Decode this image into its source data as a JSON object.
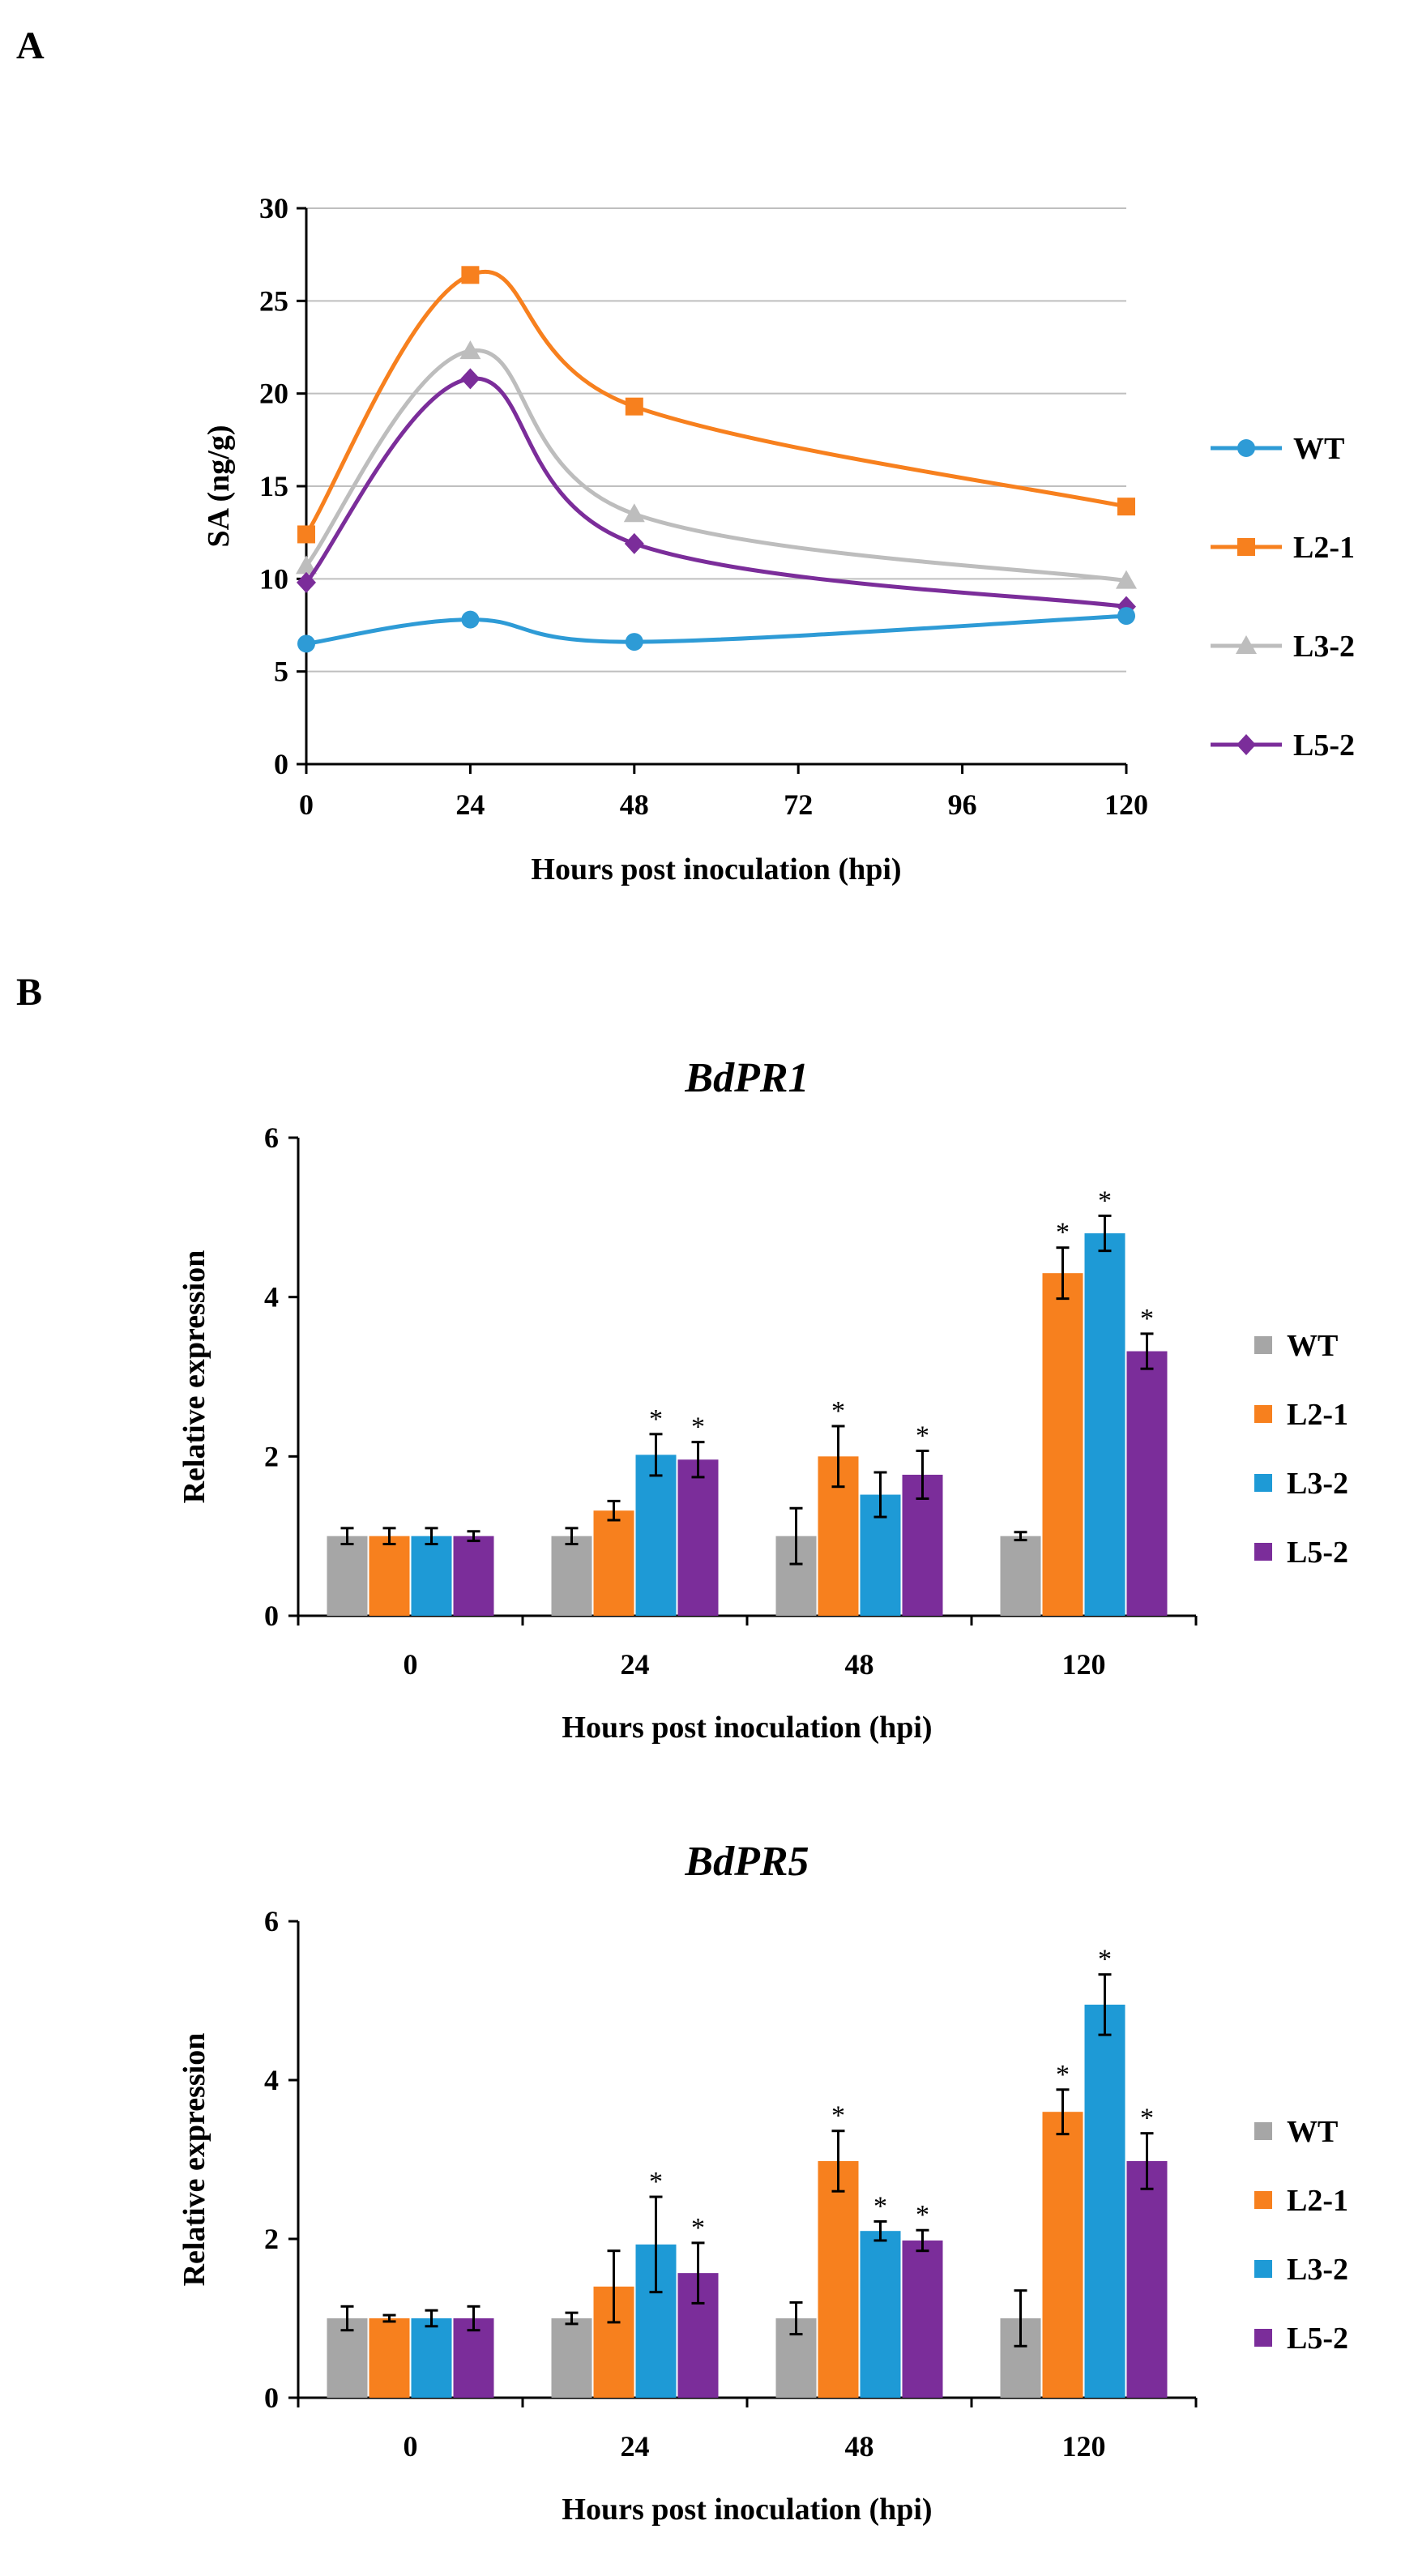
{
  "colors": {
    "WT_line": "#2E9BD6",
    "L2-1_line": "#F7801E",
    "L3-2_line": "#BDBDBD",
    "L5-2_line": "#7B2D9A",
    "WT_bar": "#A6A6A6",
    "L2-1_bar": "#F7801E",
    "L3-2_bar": "#1E9AD6",
    "L5-2_bar": "#7B2D9A",
    "grid": "#BFBFBF"
  },
  "panels": {
    "a": "A",
    "b": "B"
  },
  "chart_data": [
    {
      "id": "sa",
      "type": "line",
      "title": "",
      "xlabel": "Hours  post inoculation  (hpi)",
      "ylabel": "SA (ng/g)",
      "x": [
        0,
        24,
        48,
        120
      ],
      "xticks": [
        0,
        24,
        48,
        72,
        96,
        120
      ],
      "xlim": [
        0,
        120
      ],
      "ylim": [
        0,
        30
      ],
      "yticks": [
        0,
        5,
        10,
        15,
        20,
        25,
        30
      ],
      "grid": true,
      "legend_position": "right",
      "series": [
        {
          "name": "WT",
          "marker": "circle",
          "values": [
            6.5,
            7.8,
            6.6,
            8.0
          ]
        },
        {
          "name": "L2-1",
          "marker": "square",
          "values": [
            12.4,
            26.4,
            19.3,
            13.9
          ]
        },
        {
          "name": "L3-2",
          "marker": "triangle",
          "values": [
            10.7,
            22.3,
            13.5,
            9.9
          ]
        },
        {
          "name": "L5-2",
          "marker": "diamond",
          "values": [
            9.8,
            20.8,
            11.9,
            8.5
          ]
        }
      ]
    },
    {
      "id": "pr1",
      "type": "bar",
      "title": "BdPR1",
      "xlabel": "Hours  post inoculation  (hpi)",
      "ylabel": "Relative expression",
      "categories": [
        "0",
        "24",
        "48",
        "120"
      ],
      "ylim": [
        0,
        6
      ],
      "yticks": [
        0,
        2,
        4,
        6
      ],
      "legend_position": "right",
      "series": [
        {
          "name": "WT",
          "values": [
            1.0,
            1.0,
            1.0,
            1.0
          ],
          "errors": [
            0.1,
            0.1,
            0.35,
            0.05
          ],
          "sig": [
            false,
            false,
            false,
            false
          ]
        },
        {
          "name": "L2-1",
          "values": [
            1.0,
            1.32,
            2.0,
            4.3
          ],
          "errors": [
            0.1,
            0.12,
            0.38,
            0.32
          ],
          "sig": [
            false,
            false,
            true,
            true
          ]
        },
        {
          "name": "L3-2",
          "values": [
            1.0,
            2.02,
            1.52,
            4.8
          ],
          "errors": [
            0.1,
            0.26,
            0.28,
            0.22
          ],
          "sig": [
            false,
            true,
            false,
            true
          ]
        },
        {
          "name": "L5-2",
          "values": [
            1.0,
            1.96,
            1.77,
            3.32
          ],
          "errors": [
            0.06,
            0.22,
            0.3,
            0.22
          ],
          "sig": [
            false,
            true,
            true,
            true
          ]
        }
      ]
    },
    {
      "id": "pr5",
      "type": "bar",
      "title": "BdPR5",
      "xlabel": "Hours  post inoculation  (hpi)",
      "ylabel": "Relative expression",
      "categories": [
        "0",
        "24",
        "48",
        "120"
      ],
      "ylim": [
        0,
        6
      ],
      "yticks": [
        0,
        2,
        4,
        6
      ],
      "legend_position": "right",
      "series": [
        {
          "name": "WT",
          "values": [
            1.0,
            1.0,
            1.0,
            1.0
          ],
          "errors": [
            0.15,
            0.07,
            0.2,
            0.35
          ],
          "sig": [
            false,
            false,
            false,
            false
          ]
        },
        {
          "name": "L2-1",
          "values": [
            1.0,
            1.4,
            2.98,
            3.6
          ],
          "errors": [
            0.04,
            0.45,
            0.38,
            0.28
          ],
          "sig": [
            false,
            false,
            true,
            true
          ]
        },
        {
          "name": "L3-2",
          "values": [
            1.0,
            1.93,
            2.1,
            4.95
          ],
          "errors": [
            0.1,
            0.6,
            0.12,
            0.38
          ],
          "sig": [
            false,
            true,
            true,
            true
          ]
        },
        {
          "name": "L5-2",
          "values": [
            1.0,
            1.57,
            1.98,
            2.98
          ],
          "errors": [
            0.15,
            0.38,
            0.13,
            0.35
          ],
          "sig": [
            false,
            true,
            true,
            true
          ]
        }
      ]
    }
  ]
}
